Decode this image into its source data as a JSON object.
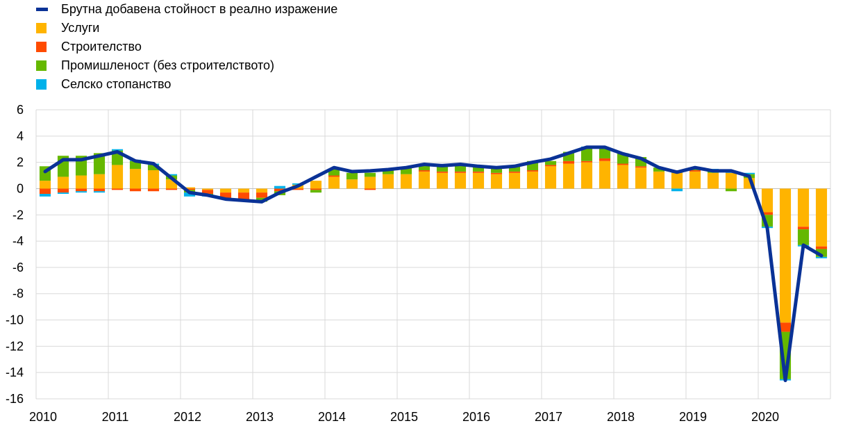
{
  "legend": {
    "line_label": "Брутна добавена стойност в реално изражение",
    "services_label": "Услуги",
    "construction_label": "Строителство",
    "industry_label": "Промишленост (без строителството)",
    "agriculture_label": "Селско стопанство"
  },
  "colors": {
    "line": "#0a3296",
    "services": "#ffb400",
    "construction": "#ff4b00",
    "industry": "#65b800",
    "agriculture": "#00b1ea",
    "grid": "#d9d9d9"
  },
  "chart_data": {
    "type": "bar",
    "stacked": true,
    "ylim": [
      -16,
      6
    ],
    "yticks": [
      6,
      4,
      2,
      0,
      -2,
      -4,
      -6,
      -8,
      -10,
      -12,
      -14,
      -16
    ],
    "year_labels": [
      "2010",
      "2011",
      "2012",
      "2013",
      "2014",
      "2015",
      "2016",
      "2017",
      "2018",
      "2019",
      "2020"
    ],
    "grid": true,
    "legend_position": "top-left",
    "categories": [
      "2010Q1",
      "2010Q2",
      "2010Q3",
      "2010Q4",
      "2011Q1",
      "2011Q2",
      "2011Q3",
      "2011Q4",
      "2012Q1",
      "2012Q2",
      "2012Q3",
      "2012Q4",
      "2013Q1",
      "2013Q2",
      "2013Q3",
      "2013Q4",
      "2014Q1",
      "2014Q2",
      "2014Q3",
      "2014Q4",
      "2015Q1",
      "2015Q2",
      "2015Q3",
      "2015Q4",
      "2016Q1",
      "2016Q2",
      "2016Q3",
      "2016Q4",
      "2017Q1",
      "2017Q2",
      "2017Q3",
      "2017Q4",
      "2018Q1",
      "2018Q2",
      "2018Q3",
      "2018Q4",
      "2019Q1",
      "2019Q2",
      "2019Q3",
      "2019Q4",
      "2020Q1",
      "2020Q2",
      "2020Q3",
      "2020Q4"
    ],
    "series": [
      {
        "name": "Услуги",
        "key": "services",
        "values": [
          0.6,
          0.9,
          1.0,
          1.1,
          1.8,
          1.5,
          1.4,
          0.7,
          0.1,
          -0.1,
          -0.3,
          -0.3,
          -0.3,
          0.0,
          0.3,
          0.6,
          0.9,
          0.7,
          0.9,
          1.1,
          1.1,
          1.3,
          1.2,
          1.2,
          1.2,
          1.1,
          1.2,
          1.3,
          1.7,
          1.9,
          2.0,
          2.1,
          1.8,
          1.6,
          1.3,
          1.2,
          1.3,
          1.2,
          1.2,
          0.8,
          -1.8,
          -10.2,
          -2.9,
          -4.4
        ]
      },
      {
        "name": "Строителство",
        "key": "construction",
        "values": [
          -0.4,
          -0.3,
          -0.2,
          -0.2,
          -0.1,
          -0.2,
          -0.2,
          -0.1,
          -0.1,
          -0.3,
          -0.4,
          -0.5,
          -0.4,
          -0.2,
          -0.1,
          -0.1,
          0.1,
          0.0,
          -0.1,
          0.0,
          0.0,
          0.1,
          0.1,
          0.1,
          0.1,
          0.1,
          0.1,
          0.1,
          0.1,
          0.2,
          0.1,
          0.2,
          0.1,
          0.1,
          0.0,
          0.0,
          0.1,
          0.0,
          0.0,
          0.0,
          -0.2,
          -0.7,
          -0.2,
          -0.2
        ]
      },
      {
        "name": "Промишленост (без строителството)",
        "key": "industry",
        "values": [
          1.1,
          1.6,
          1.5,
          1.6,
          1.1,
          0.6,
          0.4,
          0.3,
          -0.2,
          -0.1,
          -0.1,
          -0.2,
          -0.3,
          -0.3,
          0.0,
          -0.2,
          0.5,
          0.5,
          0.3,
          0.4,
          0.5,
          0.5,
          0.5,
          0.6,
          0.4,
          0.4,
          0.4,
          0.7,
          0.3,
          0.7,
          1.0,
          0.8,
          0.8,
          0.7,
          0.3,
          0.1,
          0.1,
          0.2,
          -0.2,
          0.3,
          -0.9,
          -3.6,
          -1.2,
          -0.6
        ]
      },
      {
        "name": "Селско стопанство",
        "key": "agriculture",
        "values": [
          -0.2,
          -0.1,
          -0.1,
          -0.1,
          0.1,
          0.1,
          0.1,
          0.1,
          -0.3,
          -0.1,
          0.0,
          0.0,
          0.0,
          0.2,
          0.1,
          0.0,
          0.0,
          0.0,
          0.0,
          0.0,
          0.0,
          0.0,
          0.0,
          0.0,
          0.0,
          0.0,
          0.0,
          0.0,
          0.0,
          0.0,
          0.1,
          0.0,
          0.0,
          0.0,
          0.0,
          -0.2,
          0.1,
          0.1,
          0.1,
          0.1,
          -0.1,
          -0.1,
          -0.1,
          -0.1
        ]
      },
      {
        "name": "Брутна добавена стойност в реално изражение",
        "key": "line",
        "type": "line",
        "values": [
          1.3,
          2.2,
          2.2,
          2.5,
          2.8,
          2.1,
          1.9,
          0.8,
          -0.3,
          -0.5,
          -0.8,
          -0.9,
          -1.0,
          -0.3,
          0.2,
          0.9,
          1.6,
          1.3,
          1.35,
          1.45,
          1.6,
          1.85,
          1.75,
          1.85,
          1.7,
          1.6,
          1.7,
          2.0,
          2.25,
          2.7,
          3.15,
          3.15,
          2.65,
          2.3,
          1.6,
          1.25,
          1.6,
          1.35,
          1.35,
          0.95,
          -3.0,
          -14.6,
          -4.3,
          -5.1
        ]
      }
    ]
  }
}
